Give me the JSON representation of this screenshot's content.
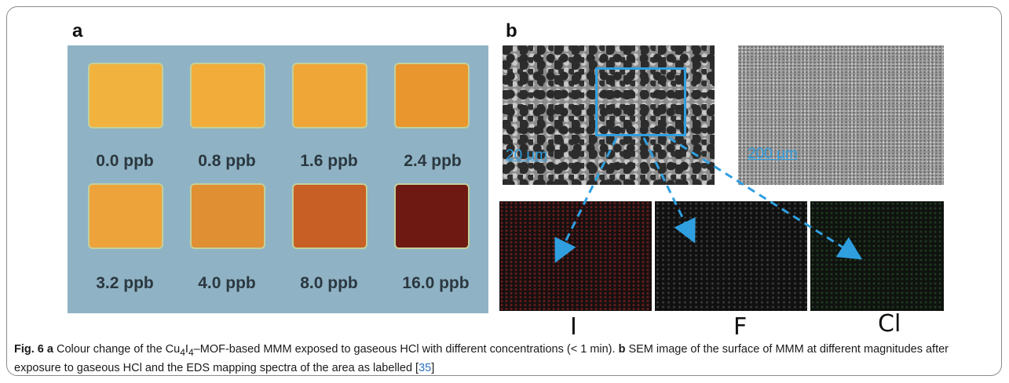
{
  "panels": {
    "a": {
      "letter": "a",
      "swatches": [
        {
          "label": "0.0 ppb",
          "color": "#f2b23e"
        },
        {
          "label": "0.8 ppb",
          "color": "#f2ac3a"
        },
        {
          "label": "1.6 ppb",
          "color": "#f0a636"
        },
        {
          "label": "2.4 ppb",
          "color": "#e9962e"
        },
        {
          "label": "3.2 ppb",
          "color": "#eda33a"
        },
        {
          "label": "4.0 ppb",
          "color": "#e08f33"
        },
        {
          "label": "8.0 ppb",
          "color": "#c85f24"
        },
        {
          "label": "16.0 ppb",
          "color": "#6e1a12"
        }
      ]
    },
    "b": {
      "letter": "b",
      "scale_main": "20 μm",
      "scale_wide": "200 μm",
      "eds_labels": [
        "I",
        "F",
        "Cl"
      ]
    }
  },
  "caption": {
    "fig_label": "Fig. 6",
    "a_letter": "a",
    "text_1": " Colour change of the Cu",
    "sub_1": "4",
    "text_2": "I",
    "sub_2": "4",
    "text_3": "–MOF-based MMM exposed to gaseous HCl with different concentrations (< 1 min). ",
    "b_letter": "b",
    "text_4": " SEM image of the surface of MMM at different magnitudes after exposure to gaseous HCl and the EDS mapping spectra of the area as labelled [",
    "ref": "35",
    "text_5": "]"
  },
  "colors": {
    "arrow": "#2f9fe0",
    "background_a": "#8fb3c4",
    "ref_link": "#2a73c2"
  }
}
